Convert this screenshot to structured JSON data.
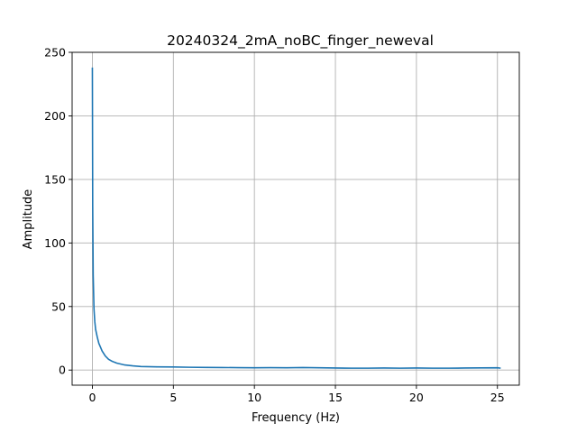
{
  "chart_data": {
    "type": "line",
    "title": "20240324_2mA_noBC_finger_neweval",
    "xlabel": "Frequency (Hz)",
    "ylabel": "Amplitude",
    "xlim": [
      -1.25,
      26.35
    ],
    "ylim": [
      -11.9,
      250
    ],
    "xticks": [
      0,
      5,
      10,
      15,
      20,
      25
    ],
    "yticks": [
      0,
      50,
      100,
      150,
      200,
      250
    ],
    "grid": true,
    "series": [
      {
        "color": "#1f77b4",
        "x": [
          0,
          0.02,
          0.05,
          0.1,
          0.15,
          0.2,
          0.3,
          0.4,
          0.5,
          0.6,
          0.8,
          1.0,
          1.2,
          1.5,
          2.0,
          2.5,
          3.0,
          4.0,
          5.0,
          6.0,
          7.0,
          8.0,
          9.0,
          10.0,
          11.0,
          12.0,
          13.0,
          14.0,
          15.0,
          16.0,
          17.0,
          18.0,
          19.0,
          20.0,
          21.0,
          22.0,
          23.0,
          24.0,
          25.0,
          25.2
        ],
        "y": [
          238,
          130,
          75,
          48,
          38,
          32,
          26,
          21,
          18,
          15,
          11,
          8.5,
          7,
          5.5,
          4,
          3.3,
          2.8,
          2.5,
          2.4,
          2.2,
          2.1,
          2.0,
          1.9,
          1.8,
          1.9,
          1.8,
          2.0,
          1.8,
          1.6,
          1.5,
          1.5,
          1.6,
          1.5,
          1.6,
          1.5,
          1.5,
          1.6,
          1.7,
          1.8,
          1.5
        ]
      }
    ]
  }
}
